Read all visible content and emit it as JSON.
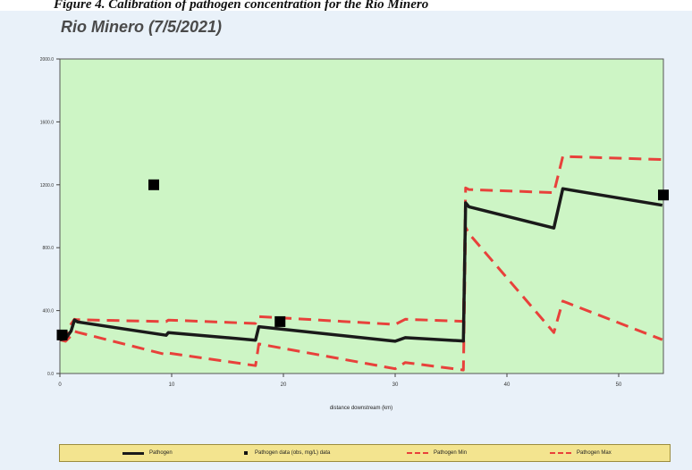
{
  "caption": "Figure 4. Calibration of pathogen concentration for the Rio Minero",
  "chart_data": {
    "type": "line",
    "title": "Rio Minero (7/5/2021)",
    "xlabel": "distance downstream (km)",
    "ylabel": "",
    "xlim": [
      0,
      54
    ],
    "ylim": [
      0,
      2000
    ],
    "x_ticks": [
      "0",
      "10",
      "20",
      "30",
      "40",
      "50"
    ],
    "y_ticks": [
      "0.0",
      "400.0",
      "800.0",
      "1200.0",
      "1600.0",
      "2000.0"
    ],
    "grid": false,
    "legend_position": "bottom",
    "series": [
      {
        "name": "Pathogen",
        "style": "solid",
        "color": "#1a1a1a",
        "x": [
          0,
          0.5,
          1.0,
          1.3,
          1.6,
          9.5,
          9.7,
          17.5,
          17.8,
          30,
          30.9,
          36.1,
          36.3,
          36.6,
          44.2,
          45.0,
          53.9
        ],
        "y": [
          215,
          220,
          270,
          340,
          328,
          243,
          260,
          212,
          298,
          205,
          228,
          207,
          1085,
          1060,
          925,
          1175,
          1070
        ]
      },
      {
        "name": "Pathogen data (obs, mg/L) data",
        "style": "points",
        "color": "#000000",
        "x": [
          0.2,
          8.4,
          19.7,
          54.0
        ],
        "y": [
          245,
          1200,
          330,
          1135
        ]
      },
      {
        "name": "Pathogen Min",
        "style": "dashed",
        "color": "#e8413b",
        "x": [
          0,
          0.5,
          1.0,
          1.3,
          1.6,
          9.5,
          9.7,
          17.5,
          17.8,
          30,
          30.9,
          36.1,
          36.3,
          36.6,
          44.2,
          45.0,
          53.9
        ],
        "y": [
          215,
          205,
          240,
          268,
          262,
          120,
          130,
          50,
          188,
          30,
          70,
          22,
          930,
          890,
          260,
          460,
          215
        ]
      },
      {
        "name": "Pathogen Max",
        "style": "dashed",
        "color": "#e8413b",
        "x": [
          0,
          0.5,
          1.0,
          1.3,
          1.6,
          9.5,
          9.7,
          17.5,
          17.8,
          30,
          30.9,
          36.1,
          36.3,
          36.6,
          44.2,
          45.0,
          53.9
        ],
        "y": [
          215,
          228,
          315,
          345,
          342,
          330,
          340,
          318,
          362,
          312,
          345,
          332,
          1180,
          1170,
          1150,
          1380,
          1360
        ]
      }
    ]
  },
  "colors": {
    "plot_background": "#cdf5c5",
    "frame_background": "#e9f1f9",
    "legend_background": "#f3e48f"
  }
}
